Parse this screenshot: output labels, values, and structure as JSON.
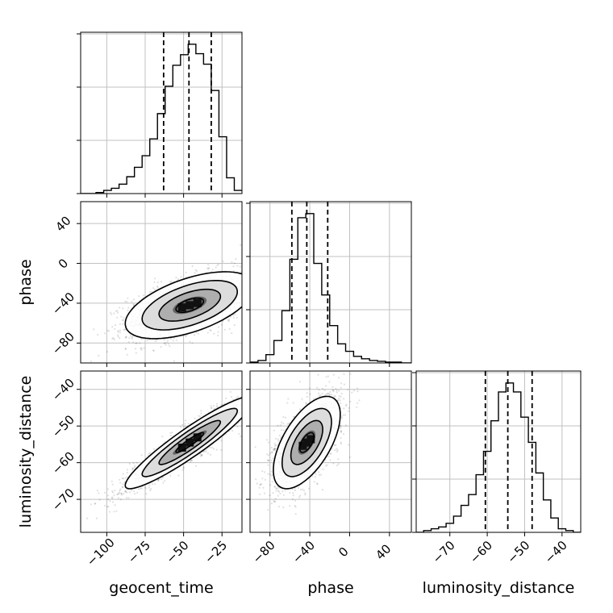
{
  "chart_data": {
    "type": "corner",
    "parameters": [
      "geocent_time",
      "phase",
      "luminosity_distance"
    ],
    "labels": {
      "geocent_time": "geocent_time",
      "phase": "phase",
      "luminosity_distance": "luminosity_distance"
    },
    "ranges": {
      "geocent_time": [
        -117,
        -12
      ],
      "phase": [
        -100,
        62
      ],
      "luminosity_distance": [
        -79,
        -35
      ]
    },
    "ticks": {
      "geocent_time": [
        -100,
        -75,
        -50,
        -25
      ],
      "phase": [
        -80,
        -40,
        0,
        40
      ],
      "luminosity_distance": [
        -70,
        -60,
        -50,
        -40
      ]
    },
    "tick_labels": {
      "geocent_time": [
        "−100",
        "−75",
        "−50",
        "−25"
      ],
      "phase": [
        "−80",
        "−40",
        "0",
        "40"
      ],
      "luminosity_distance": [
        "−70",
        "−60",
        "−50",
        "−40"
      ]
    },
    "marginals": {
      "geocent_time": {
        "bins": [
          -117,
          -112,
          -107,
          -102,
          -97,
          -92,
          -87,
          -82,
          -77,
          -72,
          -67,
          -62,
          -57,
          -52,
          -47,
          -42,
          -37,
          -32,
          -27,
          -22,
          -17,
          -12
        ],
        "counts": [
          0,
          0,
          1,
          3,
          5,
          9,
          16,
          25,
          36,
          52,
          76,
          102,
          122,
          132,
          142,
          133,
          123,
          98,
          54,
          15,
          3
        ],
        "quantiles": [
          -63,
          -46.5,
          -32
        ]
      },
      "phase": {
        "bins": [
          -100,
          -92,
          -84,
          -76,
          -68,
          -60,
          -52,
          -44,
          -36,
          -28,
          -20,
          -12,
          -4,
          4,
          12,
          20,
          28,
          36,
          44,
          52,
          62
        ],
        "counts": [
          1,
          3,
          10,
          27,
          63,
          125,
          175,
          180,
          120,
          82,
          45,
          23,
          14,
          8,
          5,
          3,
          2,
          1,
          1,
          0
        ],
        "quantiles": [
          -58,
          -43,
          -22
        ]
      },
      "luminosity_distance": {
        "bins": [
          -79,
          -77,
          -75,
          -73,
          -71,
          -69,
          -67,
          -65,
          -63,
          -61,
          -59,
          -57,
          -55,
          -53,
          -51,
          -49,
          -47,
          -45,
          -43,
          -41,
          -39,
          -37,
          -35
        ],
        "counts": [
          0,
          1,
          2,
          3,
          5,
          9,
          15,
          21,
          32,
          45,
          62,
          78,
          83,
          78,
          64,
          50,
          33,
          18,
          8,
          2,
          1,
          0
        ],
        "quantiles": [
          -60.5,
          -54.5,
          -48
        ]
      }
    },
    "joint": {
      "geocent_time_vs_phase": {
        "mean": [
          -46,
          -42
        ],
        "sd": [
          20,
          16
        ],
        "rho": 0.55
      },
      "geocent_time_vs_luminosity_distance": {
        "mean": [
          -46,
          -54.5
        ],
        "sd": [
          20,
          6
        ],
        "rho": 0.93
      },
      "phase_vs_luminosity_distance": {
        "mean": [
          -43,
          -54.5
        ],
        "sd": [
          16,
          6
        ],
        "rho": 0.6
      }
    },
    "grid": true
  }
}
